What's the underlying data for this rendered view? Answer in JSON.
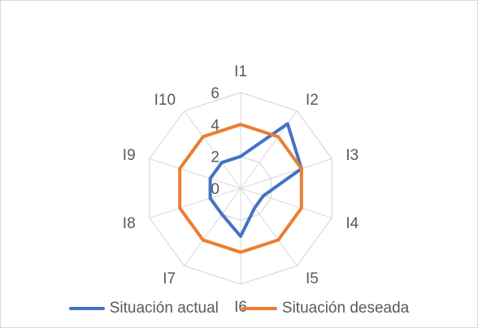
{
  "chart_data": {
    "type": "radar",
    "categories": [
      "I1",
      "I2",
      "I3",
      "I4",
      "I5",
      "I6",
      "I7",
      "I8",
      "I9",
      "I10"
    ],
    "series": [
      {
        "name": "Situación actual",
        "color": "#4472C4",
        "values": [
          2,
          5,
          4,
          1.5,
          1.5,
          3,
          2,
          2,
          2,
          2
        ]
      },
      {
        "name": "Situación deseada",
        "color": "#ED7D31",
        "values": [
          4,
          4,
          4,
          4,
          4,
          4,
          4,
          4,
          4,
          4
        ]
      }
    ],
    "radial_ticks": [
      "0",
      "2",
      "4",
      "6"
    ],
    "rlim": [
      0,
      6
    ],
    "grid": true,
    "grid_color": "#d9d9d9",
    "legend_position": "bottom"
  }
}
